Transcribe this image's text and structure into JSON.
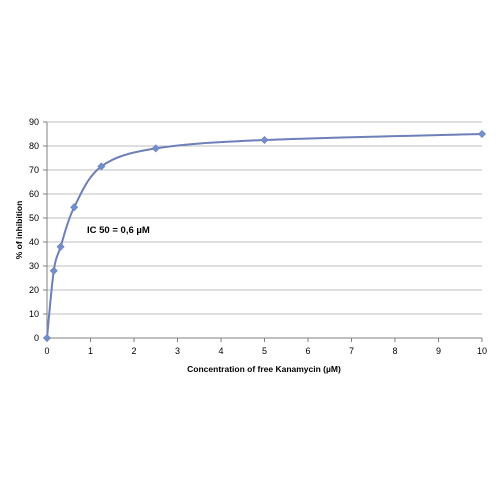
{
  "chart_data": {
    "type": "scatter",
    "title": "",
    "xlabel": "Concentration of free Kanamycin (µM)",
    "ylabel": "% of inhibition",
    "xlim": [
      0,
      10
    ],
    "ylim": [
      0,
      90
    ],
    "xticks": [
      "0",
      "1",
      "2",
      "3",
      "4",
      "5",
      "6",
      "7",
      "8",
      "9",
      "10"
    ],
    "yticks": [
      "0",
      "10",
      "20",
      "30",
      "40",
      "50",
      "60",
      "70",
      "80",
      "90"
    ],
    "grid": true,
    "legend": "none",
    "line_style": "smooth",
    "series": [
      {
        "x": [
          0,
          0.156,
          0.3125,
          0.625,
          1.25,
          2.5,
          5,
          10
        ],
        "y": [
          0,
          28,
          38,
          54.5,
          71.5,
          79,
          82.5,
          85
        ]
      }
    ],
    "annotations": [
      "IC 50 = 0,6 µM"
    ],
    "colors": {
      "series": "#6f7fba",
      "marker": "#6f8fcd"
    }
  }
}
